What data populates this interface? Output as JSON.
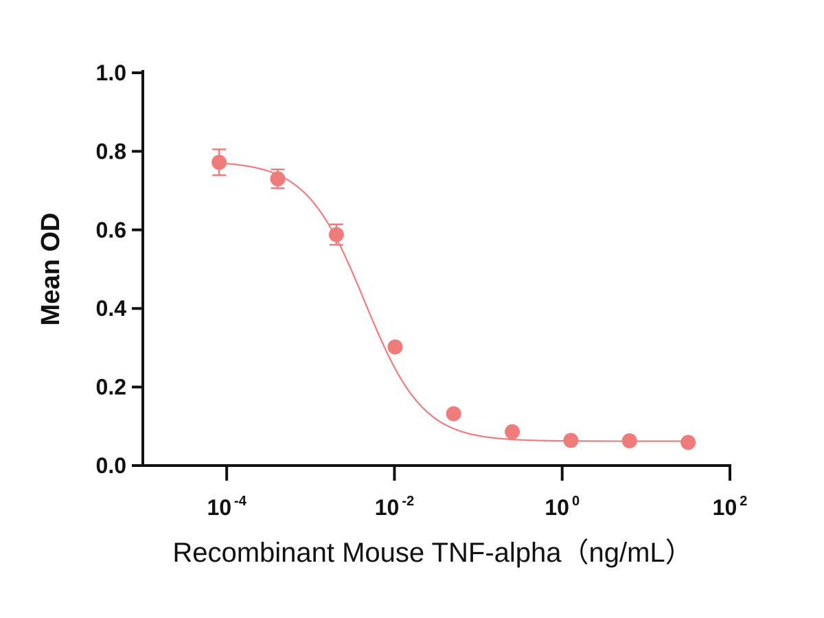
{
  "chart_data": {
    "type": "scatter",
    "title": "",
    "xlabel": "Recombinant Mouse TNF-alpha（ng/mL）",
    "ylabel": "Mean OD",
    "xscale": "log10",
    "xlim": [
      1e-05,
      100
    ],
    "ylim": [
      0.0,
      1.0
    ],
    "yticks": [
      {
        "value": 0.0,
        "label": "0.0"
      },
      {
        "value": 0.2,
        "label": "0.2"
      },
      {
        "value": 0.4,
        "label": "0.4"
      },
      {
        "value": 0.6,
        "label": "0.6"
      },
      {
        "value": 0.8,
        "label": "0.8"
      },
      {
        "value": 1.0,
        "label": "1.0"
      }
    ],
    "xticks": [
      {
        "value": 0.0001,
        "base": "10",
        "exp": "-4"
      },
      {
        "value": 0.01,
        "base": "10",
        "exp": "-2"
      },
      {
        "value": 1,
        "base": "10",
        "exp": "0"
      },
      {
        "value": 100,
        "base": "10",
        "exp": "2"
      }
    ],
    "series": [
      {
        "name": "Recombinant Mouse TNF-alpha",
        "color": "#f07b7b",
        "x": [
          8.13e-05,
          0.000406,
          0.00203,
          0.0102,
          0.0508,
          0.254,
          1.27,
          6.35,
          31.75
        ],
        "y": [
          0.772,
          0.73,
          0.588,
          0.302,
          0.132,
          0.086,
          0.064,
          0.063,
          0.059
        ],
        "error": [
          0.033,
          0.024,
          0.026,
          0.0,
          0.0,
          0.0,
          0.0,
          0.0,
          0.0
        ],
        "fit": {
          "model": "4PL",
          "top": 0.775,
          "bottom": 0.062,
          "ec50": 0.0044,
          "hill": 1.25
        }
      }
    ]
  }
}
